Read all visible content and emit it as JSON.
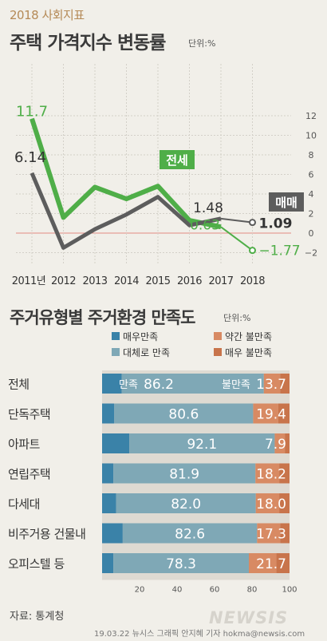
{
  "header": {
    "tag": "2018 사회지표",
    "source": "자료: 통계청",
    "credit": "19.03.22 뉴시스 그래픽 안지혜 기자 hokma@newsis.com",
    "watermark": "NEWSIS"
  },
  "colors": {
    "jeonse": "#4fae48",
    "maemae": "#5d5d5d",
    "very_satisfied": "#3a82a8",
    "mostly_satisfied": "#7fa8b6",
    "somewhat_unsatisfied": "#d88a63",
    "very_unsatisfied": "#c8744b",
    "zero_line": "#e48b83"
  },
  "chart_data": [
    {
      "type": "line",
      "title": "주택 가격지수 변동률",
      "unit": "단위:%",
      "categories": [
        "2011년",
        "2012",
        "2013",
        "2014",
        "2015",
        "2016",
        "2017",
        "2018"
      ],
      "ylim": [
        -2.5,
        13
      ],
      "yticks": [
        "-2",
        "0",
        "2",
        "4",
        "6",
        "8",
        "10",
        "12"
      ],
      "grid": true,
      "series": [
        {
          "name": "전세",
          "values": [
            11.7,
            1.6,
            4.7,
            3.5,
            4.8,
            1.3,
            0.63,
            -1.77
          ],
          "labels": {
            "0": "11.7",
            "6": "0.63",
            "7": "-1.77"
          }
        },
        {
          "name": "매매",
          "values": [
            6.14,
            -1.5,
            0.4,
            1.9,
            3.7,
            0.8,
            1.48,
            1.09
          ],
          "labels": {
            "0": "6.14",
            "6": "1.48",
            "7": "1.09"
          }
        }
      ]
    },
    {
      "type": "bar",
      "stacked": true,
      "orientation": "horizontal",
      "title": "주거유형별 주거환경 만족도",
      "unit": "단위:%",
      "legend": [
        "매우만족",
        "약간 불만족",
        "대체로 만족",
        "매우 불만족"
      ],
      "xlim": [
        0,
        100
      ],
      "xticks": [
        "20",
        "40",
        "60",
        "80",
        "100"
      ],
      "categories": [
        "전체",
        "단독주택",
        "아파트",
        "연립주택",
        "다세대",
        "비주거용 건물내",
        "오피스텔 등"
      ],
      "satisfied": [
        86.2,
        80.6,
        92.1,
        81.9,
        82.0,
        82.6,
        78.3
      ],
      "satisfied_labels": [
        "86.2",
        "80.6",
        "92.1",
        "81.9",
        "82.0",
        "82.6",
        "78.3"
      ],
      "unsatisfied": [
        13.7,
        19.4,
        7.9,
        18.2,
        18.0,
        17.3,
        21.7
      ],
      "unsatisfied_labels": [
        "13.7",
        "19.4",
        "7.9",
        "18.2",
        "18.0",
        "17.3",
        "21.7"
      ],
      "very_satisfied": [
        10.5,
        6.5,
        14.5,
        6.0,
        7.5,
        11.0,
        6.0
      ],
      "very_unsatisfied": [
        5.0,
        6.0,
        2.5,
        5.5,
        5.5,
        5.0,
        7.0
      ],
      "first_row_prefix": {
        "satisfied": "만족",
        "unsatisfied": "불만족"
      }
    }
  ]
}
